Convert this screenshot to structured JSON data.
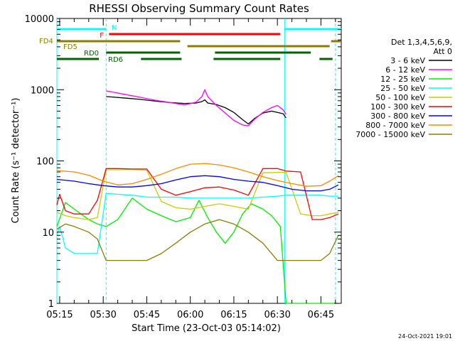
{
  "chart_data": {
    "type": "line",
    "title": "RHESSI Observing Summary Count Rates",
    "xlabel": "Start Time (23-Oct-03 05:14:02)",
    "ylabel": "Count Rate (s⁻¹ detector⁻¹)",
    "y_scale": "log",
    "ylim": [
      1,
      10000
    ],
    "xlim": [
      "05:14:02",
      "06:52:00"
    ],
    "x_ticks": [
      "05:15",
      "05:30",
      "05:45",
      "06:00",
      "06:15",
      "06:30",
      "06:45"
    ],
    "y_ticks": [
      "1",
      "10",
      "100",
      "1000",
      "10000"
    ],
    "grid": false,
    "legend_position": "right",
    "legend_header": [
      "Det 1,3,4,5,6,9,",
      "Att 0"
    ],
    "footer_date": "24-Oct-2021 19:01",
    "series": [
      {
        "name": "3 - 6 keV",
        "color": "#000000",
        "x": [
          "05:31:00",
          "05:33",
          "05:38",
          "05:43",
          "05:48",
          "05:53",
          "05:58",
          "06:02",
          "06:04",
          "06:05",
          "06:06",
          "06:09",
          "06:12",
          "06:15",
          "06:18",
          "06:20",
          "06:22",
          "06:25",
          "06:28",
          "06:30",
          "06:32",
          "06:33:00"
        ],
        "values": [
          800,
          790,
          760,
          730,
          690,
          660,
          640,
          650,
          680,
          720,
          650,
          620,
          560,
          480,
          380,
          330,
          390,
          470,
          500,
          480,
          460,
          400
        ]
      },
      {
        "name": "6 - 12 keV",
        "color": "#ff00ff",
        "x": [
          "05:31:00",
          "05:33",
          "05:38",
          "05:43",
          "05:48",
          "05:53",
          "05:58",
          "06:02",
          "06:04",
          "06:05",
          "06:06",
          "06:09",
          "06:12",
          "06:15",
          "06:18",
          "06:20",
          "06:22",
          "06:25",
          "06:28",
          "06:30",
          "06:32",
          "06:33:00"
        ],
        "values": [
          960,
          930,
          850,
          780,
          710,
          660,
          610,
          670,
          800,
          1000,
          800,
          600,
          470,
          370,
          320,
          310,
          380,
          480,
          560,
          600,
          520,
          450
        ]
      },
      {
        "name": "12 - 25 keV",
        "color": "#00ee00",
        "x": [
          "05:14:02",
          "05:17",
          "05:20",
          "05:25",
          "05:28",
          "05:31",
          "05:35",
          "05:40",
          "05:45",
          "05:50",
          "05:55",
          "06:00",
          "06:03",
          "06:06",
          "06:09",
          "06:12",
          "06:15",
          "06:18",
          "06:21",
          "06:25",
          "06:28",
          "06:31",
          "06:33",
          "06:38",
          "06:42",
          "06:45",
          "06:48",
          "06:51"
        ],
        "values": [
          12,
          26,
          21,
          15,
          13,
          12,
          15,
          30,
          21,
          17,
          14,
          16,
          28,
          16,
          10,
          7,
          10,
          18,
          25,
          21,
          17,
          12,
          1,
          1,
          1,
          1,
          1,
          1
        ]
      },
      {
        "name": "25 - 50 keV",
        "color": "#00ffff",
        "x": [
          "05:14:02",
          "05:15",
          "05:17",
          "05:20",
          "05:25",
          "05:28",
          "05:31",
          "05:35",
          "05:40",
          "05:45",
          "05:50",
          "05:55",
          "06:00",
          "06:05",
          "06:10",
          "06:15",
          "06:20",
          "06:25",
          "06:30",
          "06:33",
          "06:38",
          "06:42",
          "06:45",
          "06:48",
          "06:51"
        ],
        "values": [
          9,
          12,
          6,
          5,
          5,
          5,
          35,
          34,
          33,
          31,
          31,
          31,
          30,
          30,
          30,
          30,
          30,
          31,
          32,
          33,
          33,
          33,
          33,
          32,
          32
        ]
      },
      {
        "name": "50 - 100 keV",
        "color": "#cccc00",
        "x": [
          "05:14:02",
          "05:17",
          "05:20",
          "05:25",
          "05:28",
          "05:31",
          "05:35",
          "05:40",
          "05:45",
          "05:50",
          "05:55",
          "06:00",
          "06:05",
          "06:10",
          "06:15",
          "06:20",
          "06:25",
          "06:30",
          "06:33",
          "06:38",
          "06:42",
          "06:45",
          "06:48",
          "06:51"
        ],
        "values": [
          19,
          17,
          16,
          15,
          16,
          75,
          75,
          76,
          74,
          27,
          22,
          21,
          23,
          25,
          23,
          21,
          68,
          69,
          69,
          18,
          17,
          17,
          18,
          19
        ]
      },
      {
        "name": "100 - 300 keV",
        "color": "#ff0000",
        "x": [
          "05:14:02",
          "05:15",
          "05:17",
          "05:20",
          "05:25",
          "05:28",
          "05:31",
          "05:35",
          "05:40",
          "05:45",
          "05:50",
          "05:55",
          "06:00",
          "06:05",
          "06:10",
          "06:15",
          "06:20",
          "06:25",
          "06:30",
          "06:33",
          "06:38",
          "06:42",
          "06:45",
          "06:48",
          "06:51"
        ],
        "values": [
          24,
          34,
          20,
          18,
          18,
          28,
          78,
          78,
          77,
          77,
          40,
          33,
          37,
          42,
          43,
          39,
          33,
          78,
          78,
          72,
          70,
          15,
          15,
          16,
          18
        ]
      },
      {
        "name": "300 - 800 keV",
        "color": "#0000ff",
        "x": [
          "05:14:02",
          "05:20",
          "05:25",
          "05:30",
          "05:35",
          "05:40",
          "05:45",
          "05:50",
          "05:55",
          "06:00",
          "06:05",
          "06:10",
          "06:15",
          "06:20",
          "06:25",
          "06:30",
          "06:35",
          "06:40",
          "06:45",
          "06:48",
          "06:51"
        ],
        "values": [
          55,
          52,
          48,
          45,
          43,
          43,
          45,
          48,
          54,
          60,
          62,
          60,
          55,
          52,
          50,
          45,
          40,
          38,
          38,
          40,
          46
        ]
      },
      {
        "name": "800 - 7000 keV",
        "color": "#ff8800",
        "x": [
          "05:14:02",
          "05:20",
          "05:25",
          "05:30",
          "05:35",
          "05:40",
          "05:45",
          "05:50",
          "05:55",
          "06:00",
          "06:05",
          "06:10",
          "06:15",
          "06:20",
          "06:25",
          "06:30",
          "06:35",
          "06:40",
          "06:45",
          "06:48",
          "06:51"
        ],
        "values": [
          73,
          70,
          63,
          52,
          46,
          48,
          55,
          65,
          78,
          90,
          92,
          88,
          80,
          70,
          60,
          53,
          48,
          44,
          45,
          52,
          62
        ]
      },
      {
        "name": "7000 - 15000 keV",
        "color": "#8b7d00",
        "x": [
          "05:14:02",
          "05:17",
          "05:20",
          "05:25",
          "05:28",
          "05:31",
          "05:35",
          "05:40",
          "05:45",
          "05:50",
          "05:55",
          "06:00",
          "06:05",
          "06:10",
          "06:15",
          "06:20",
          "06:25",
          "06:30",
          "06:35",
          "06:40",
          "06:45",
          "06:48",
          "06:51"
        ],
        "values": [
          11,
          13,
          12,
          10,
          8,
          4,
          4,
          4,
          4,
          5,
          7,
          10,
          13,
          15,
          13,
          10,
          7,
          4,
          4,
          4,
          4,
          5,
          9
        ]
      }
    ],
    "flags": [
      {
        "label": "N",
        "color": "#00ffff",
        "segments": [
          [
            "05:14:02",
            "05:31:00"
          ],
          [
            "06:32:30",
            "06:52:00"
          ]
        ]
      },
      {
        "label": "F",
        "color": "#ff0000",
        "segments": [
          [
            "05:32:00",
            "06:31:00"
          ]
        ]
      },
      {
        "label": "FD4",
        "color": "#8b7d00",
        "segments": [
          [
            "05:14:02",
            "05:56:30"
          ],
          [
            "06:48:30",
            "06:52:00"
          ]
        ]
      },
      {
        "label": "FD5",
        "color": "#8b7d00",
        "segments": [
          [
            "05:59:00",
            "06:48:00"
          ]
        ]
      },
      {
        "label": "RD0",
        "color": "#006400",
        "segments": [
          [
            "05:31:00",
            "05:56:30"
          ],
          [
            "06:08:30",
            "06:41:30"
          ]
        ]
      },
      {
        "label": "RD6",
        "color": "#006400",
        "segments": [
          [
            "05:14:02",
            "05:28:30"
          ],
          [
            "05:43:00",
            "05:57:00"
          ],
          [
            "06:08:00",
            "06:31:00"
          ],
          [
            "06:44:30",
            "06:49:00"
          ]
        ]
      }
    ],
    "orbit_marks": [
      {
        "time": "05:14:02",
        "style": "solid"
      },
      {
        "time": "05:31:00",
        "style": "dashed"
      },
      {
        "time": "06:32:30",
        "style": "solid"
      },
      {
        "time": "06:50:00",
        "style": "dashed"
      }
    ]
  }
}
